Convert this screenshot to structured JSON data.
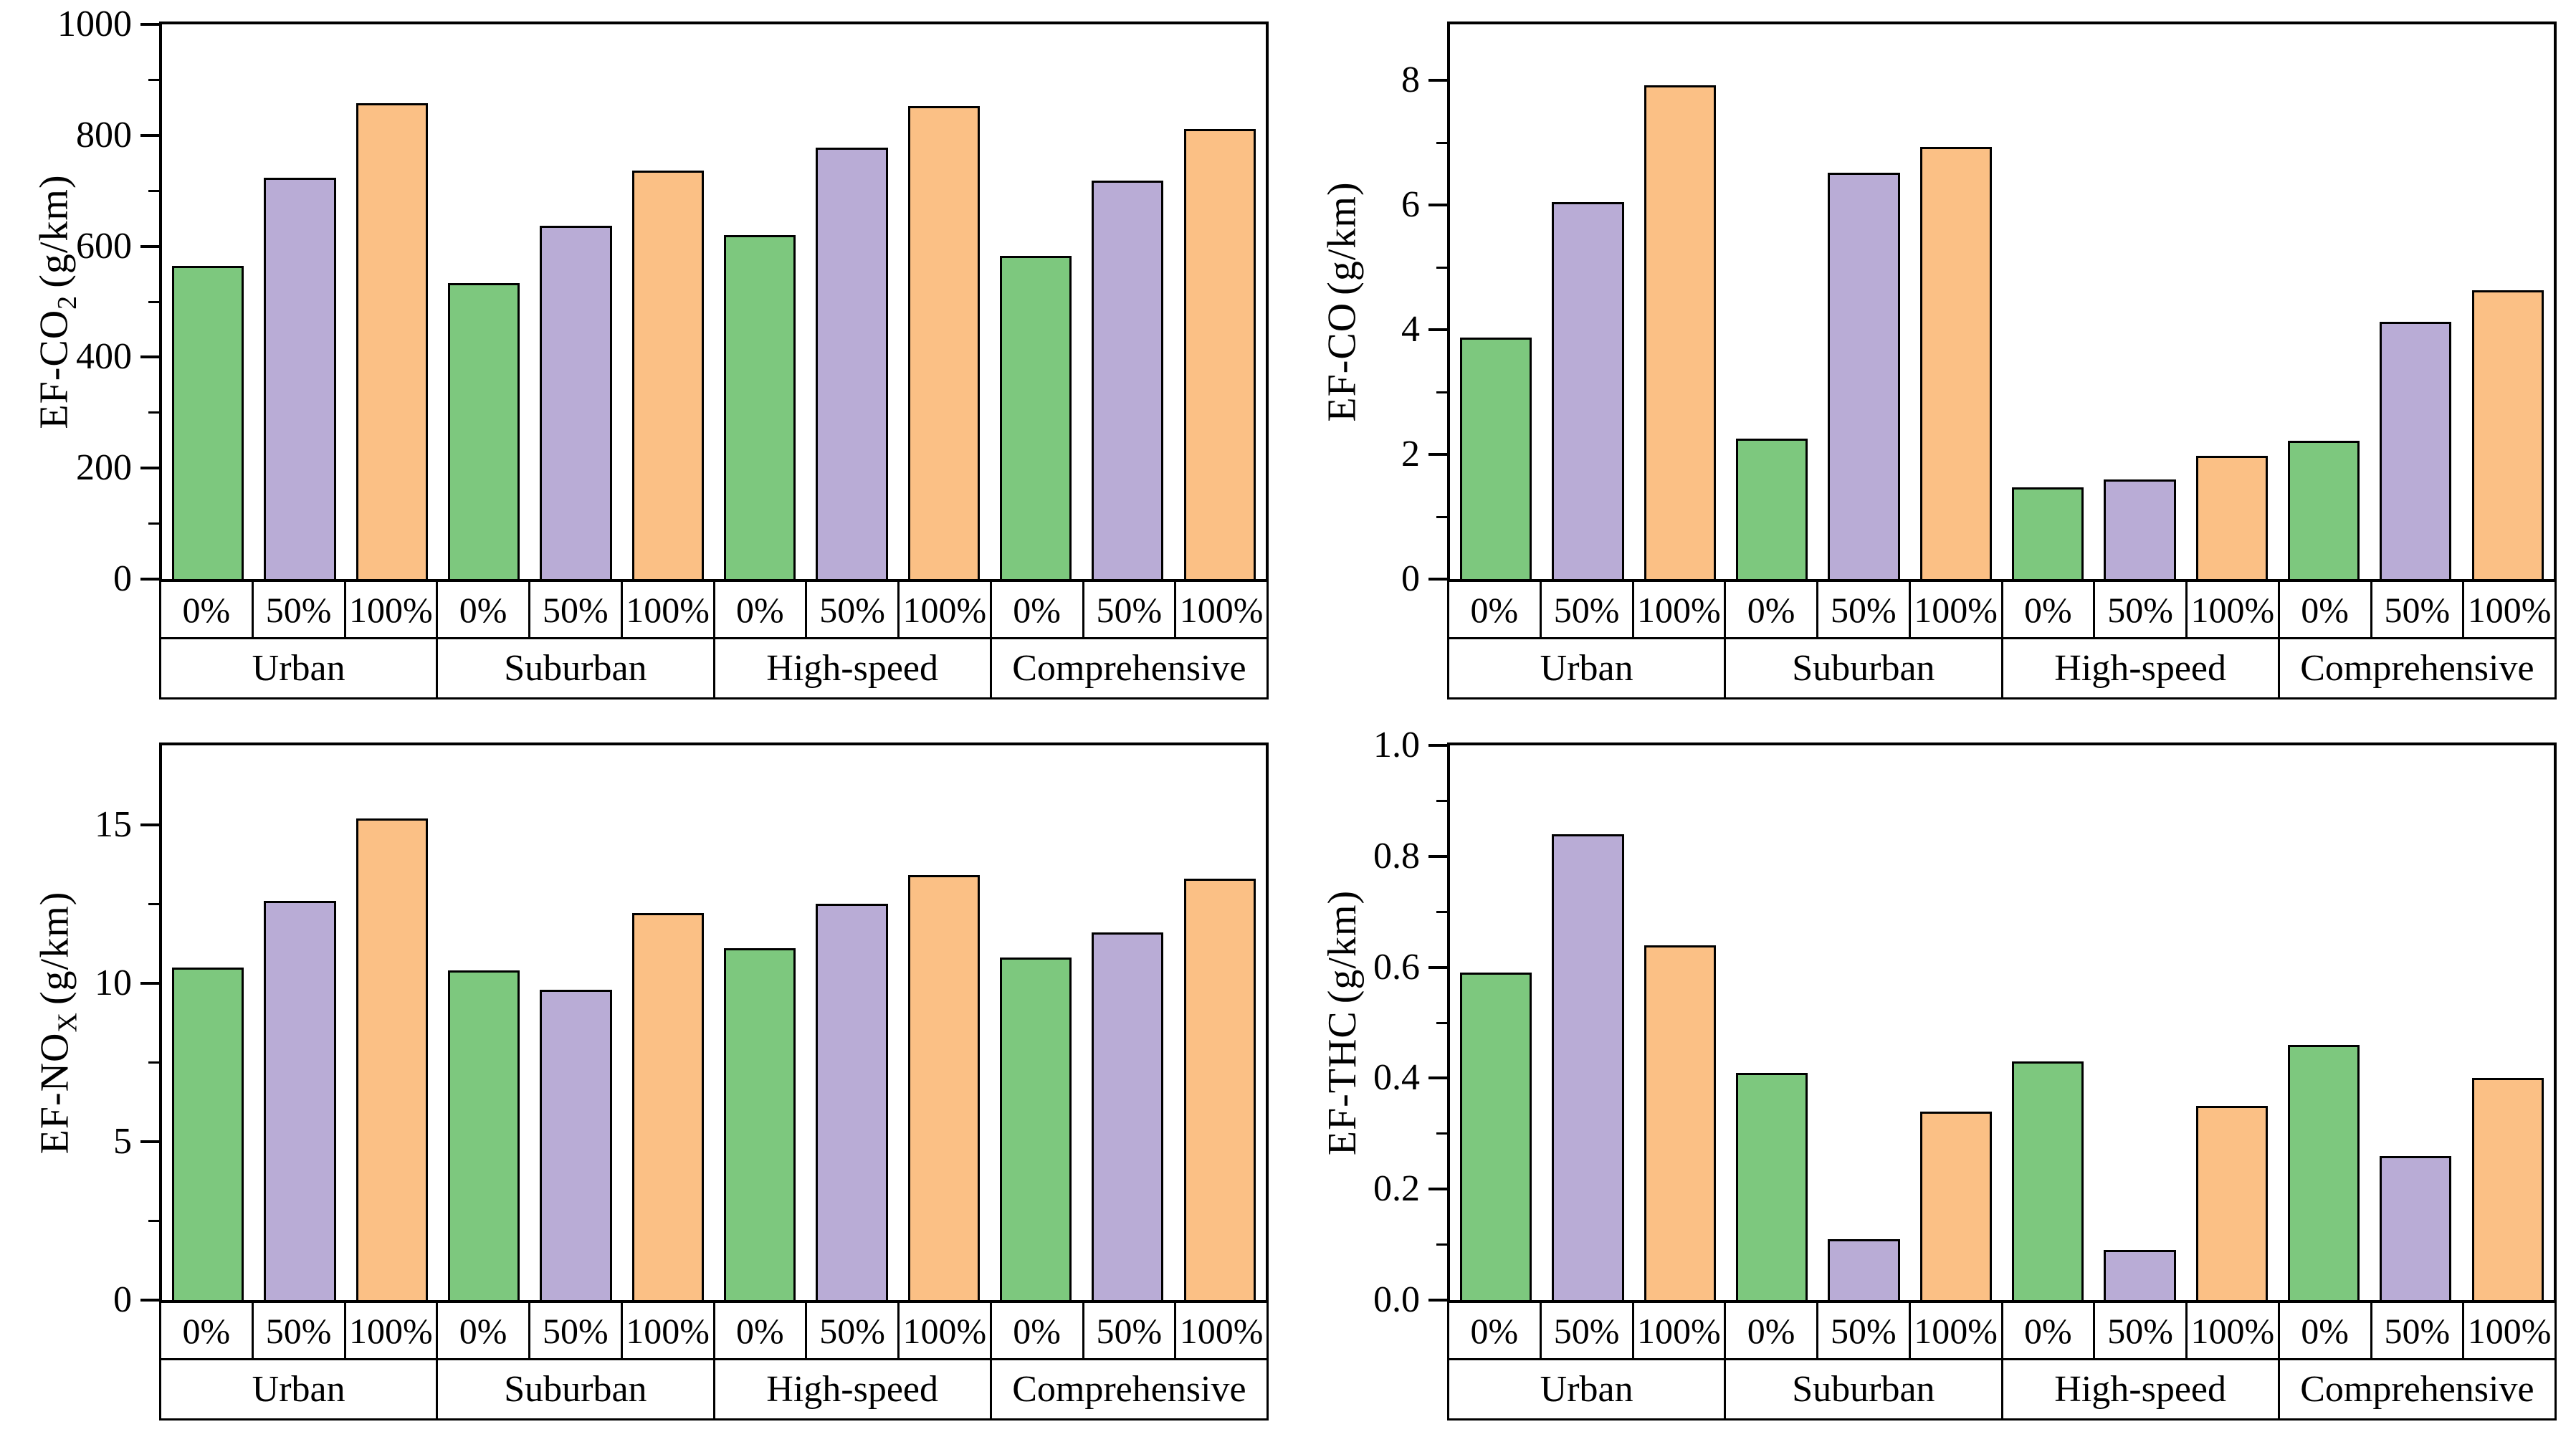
{
  "figure": {
    "background": "#ffffff",
    "axis_color": "#000000",
    "bar_border_color": "#000000"
  },
  "load_levels": [
    "0%",
    "50%",
    "100%"
  ],
  "load_colors": {
    "0%": "#7DC87E",
    "50%": "#B9ACD6",
    "100%": "#FBC085"
  },
  "chart_data": [
    {
      "id": "ef-co2",
      "type": "bar",
      "position": "top-left",
      "ylabel_main": "EF-CO",
      "ylabel_sub": "2",
      "ylabel_unit": "(g/km)",
      "xlabel": "",
      "categories": [
        "Urban",
        "Suburban",
        "High-speed",
        "Comprehensive"
      ],
      "sub_categories": [
        "0%",
        "50%",
        "100%"
      ],
      "series": [
        {
          "name": "0%",
          "color": "#7DC87E",
          "values": [
            565,
            534,
            620,
            583
          ]
        },
        {
          "name": "50%",
          "color": "#B9ACD6",
          "values": [
            723,
            637,
            778,
            719
          ]
        },
        {
          "name": "100%",
          "color": "#FBC085",
          "values": [
            858,
            737,
            853,
            811
          ]
        }
      ],
      "ylim": [
        0,
        1000
      ],
      "plot_max": 1000,
      "yticks": [
        "0",
        "200",
        "400",
        "600",
        "800",
        "1000"
      ],
      "ytick_values": [
        0,
        200,
        400,
        600,
        800,
        1000
      ],
      "minor_tick_step": 100,
      "grid": "off",
      "legend": "none"
    },
    {
      "id": "ef-co",
      "type": "bar",
      "position": "top-right",
      "ylabel_main": "EF-CO",
      "ylabel_sub": "",
      "ylabel_unit": "(g/km)",
      "xlabel": "",
      "categories": [
        "Urban",
        "Suburban",
        "High-speed",
        "Comprehensive"
      ],
      "sub_categories": [
        "0%",
        "50%",
        "100%"
      ],
      "series": [
        {
          "name": "0%",
          "color": "#7DC87E",
          "values": [
            3.87,
            2.25,
            1.47,
            2.22
          ]
        },
        {
          "name": "50%",
          "color": "#B9ACD6",
          "values": [
            6.05,
            6.52,
            1.6,
            4.13
          ]
        },
        {
          "name": "100%",
          "color": "#FBC085",
          "values": [
            7.92,
            6.93,
            1.98,
            4.63
          ]
        }
      ],
      "ylim": [
        0,
        8.9
      ],
      "plot_max": 8.9,
      "yticks": [
        "0",
        "2",
        "4",
        "6",
        "8"
      ],
      "ytick_values": [
        0,
        2,
        4,
        6,
        8
      ],
      "minor_tick_step": 1,
      "grid": "off",
      "legend": "none"
    },
    {
      "id": "ef-nox",
      "type": "bar",
      "position": "bottom-left",
      "ylabel_main": "EF-NO",
      "ylabel_sub": "X",
      "ylabel_unit": "(g/km)",
      "xlabel": "",
      "categories": [
        "Urban",
        "Suburban",
        "High-speed",
        "Comprehensive"
      ],
      "sub_categories": [
        "0%",
        "50%",
        "100%"
      ],
      "series": [
        {
          "name": "0%",
          "color": "#7DC87E",
          "values": [
            10.5,
            10.4,
            11.1,
            10.8
          ]
        },
        {
          "name": "50%",
          "color": "#B9ACD6",
          "values": [
            12.6,
            9.8,
            12.5,
            11.6
          ]
        },
        {
          "name": "100%",
          "color": "#FBC085",
          "values": [
            15.2,
            12.2,
            13.4,
            13.3
          ]
        }
      ],
      "ylim": [
        0,
        17.5
      ],
      "plot_max": 17.5,
      "yticks": [
        "0",
        "5",
        "10",
        "15"
      ],
      "ytick_values": [
        0,
        5,
        10,
        15
      ],
      "minor_tick_step": 2.5,
      "grid": "off",
      "legend": "none"
    },
    {
      "id": "ef-thc",
      "type": "bar",
      "position": "bottom-right",
      "ylabel_main": "EF-THC",
      "ylabel_sub": "",
      "ylabel_unit": "(g/km)",
      "xlabel": "",
      "categories": [
        "Urban",
        "Suburban",
        "High-speed",
        "Comprehensive"
      ],
      "sub_categories": [
        "0%",
        "50%",
        "100%"
      ],
      "series": [
        {
          "name": "0%",
          "color": "#7DC87E",
          "values": [
            0.59,
            0.41,
            0.43,
            0.46
          ]
        },
        {
          "name": "50%",
          "color": "#B9ACD6",
          "values": [
            0.84,
            0.11,
            0.09,
            0.26
          ]
        },
        {
          "name": "100%",
          "color": "#FBC085",
          "values": [
            0.64,
            0.34,
            0.35,
            0.4
          ]
        }
      ],
      "ylim": [
        0,
        1.0
      ],
      "plot_max": 1.0,
      "yticks": [
        "0.0",
        "0.2",
        "0.4",
        "0.6",
        "0.8",
        "1.0"
      ],
      "ytick_values": [
        0,
        0.2,
        0.4,
        0.6,
        0.8,
        1.0
      ],
      "minor_tick_step": 0.1,
      "grid": "off",
      "legend": "none"
    }
  ]
}
